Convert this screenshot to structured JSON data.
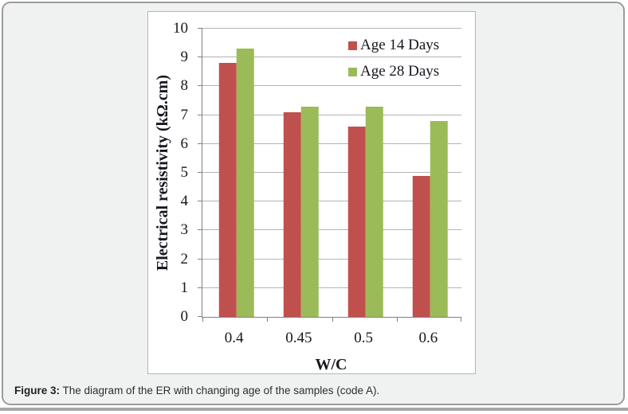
{
  "figure": {
    "caption_label": "Figure 3:",
    "caption_text": " The diagram of the ER with changing age of the samples (code A)."
  },
  "chart_data": {
    "type": "bar",
    "title": "",
    "xlabel": "W/C",
    "ylabel": "Electrical resistivity (kΩ.cm)",
    "categories": [
      "0.4",
      "0.45",
      "0.5",
      "0.6"
    ],
    "series": [
      {
        "name": "Age 14 Days",
        "color": "#c0504d",
        "values": [
          8.8,
          7.1,
          6.6,
          4.9
        ]
      },
      {
        "name": "Age 28 Days",
        "color": "#9bbb59",
        "values": [
          9.3,
          7.3,
          7.3,
          6.8
        ]
      }
    ],
    "ylim": [
      0,
      10
    ],
    "ytick_step": 1,
    "grid": true,
    "legend_position": "top-right",
    "axis_color": "#808080",
    "gridline_color": "#b3b3b3"
  }
}
